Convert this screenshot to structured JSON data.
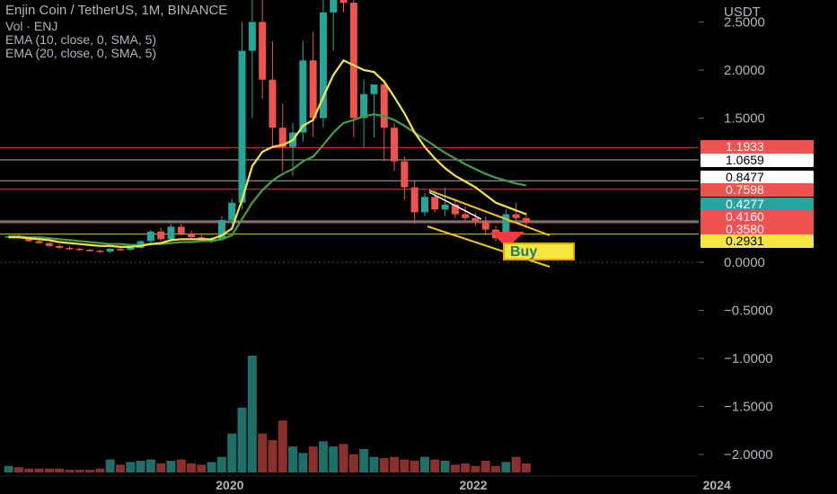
{
  "header": {
    "title": "Enjin Coin / TetherUS, 1M, BINANCE",
    "volume": "Vol · ENJ",
    "ema10": "EMA (10, close, 0, SMA, 5)",
    "ema20": "EMA (20, close, 0, SMA, 5)"
  },
  "colors": {
    "up": "#26a69a",
    "down": "#ef5350",
    "up_vol": "#1f6e68",
    "down_vol": "#8a2f2c",
    "ema10": "#f5e642",
    "ema20": "#43a047",
    "channel": "#f5c518",
    "buy_arrow": "#ef3b3b",
    "buy_box": "#f5e642"
  },
  "annotation": {
    "buy_label": "Buy"
  },
  "chart_data": {
    "type": "candlestick",
    "title": "Enjin Coin / TetherUS, 1M, BINANCE",
    "y_unit": "USDT",
    "ylim": [
      -2.3,
      2.7
    ],
    "y_ticks": [
      "2.5000",
      "2.0000",
      "1.5000",
      "0.0000",
      "−0.5000",
      "−1.0000",
      "−1.5000",
      "−2.0000"
    ],
    "x_ticks": [
      "2020",
      "2022",
      "2024"
    ],
    "x_tick_index": [
      22,
      46,
      70
    ],
    "price_badges": [
      {
        "label": "1.1933",
        "value": 1.1933,
        "style": "down"
      },
      {
        "label": "1.0659",
        "value": 1.0659,
        "style": "white"
      },
      {
        "label": "0.8477",
        "value": 0.8477,
        "style": "white"
      },
      {
        "label": "0.7598",
        "value": 0.7598,
        "style": "down"
      },
      {
        "label": "0.4277",
        "value": 0.4277,
        "style": "up"
      },
      {
        "label": "0.4160",
        "value": 0.416,
        "style": "down"
      },
      {
        "label": "0.3580",
        "value": 0.358,
        "style": "down"
      },
      {
        "label": "0.2931",
        "value": 0.2931,
        "style": "yellow"
      }
    ],
    "hlines": [
      {
        "value": 1.1933,
        "color": "#ef5350"
      },
      {
        "value": 1.0659,
        "color": "#cfcfcf"
      },
      {
        "value": 0.8477,
        "color": "#cfcfcf"
      },
      {
        "value": 0.7598,
        "color": "#ef5350"
      },
      {
        "value": 0.4277,
        "color": "#26a69a"
      },
      {
        "value": 0.416,
        "color": "#ef5350"
      },
      {
        "value": 0.2931,
        "color": "#f5e642"
      },
      {
        "value": 0.0,
        "color": "#555555",
        "dashed": true
      }
    ],
    "candles": [
      [
        0.26,
        0.28,
        0.25,
        0.27
      ],
      [
        0.27,
        0.29,
        0.25,
        0.25
      ],
      [
        0.25,
        0.26,
        0.21,
        0.22
      ],
      [
        0.22,
        0.24,
        0.19,
        0.2
      ],
      [
        0.2,
        0.21,
        0.16,
        0.17
      ],
      [
        0.17,
        0.19,
        0.14,
        0.15
      ],
      [
        0.15,
        0.17,
        0.13,
        0.14
      ],
      [
        0.14,
        0.15,
        0.12,
        0.13
      ],
      [
        0.13,
        0.14,
        0.11,
        0.12
      ],
      [
        0.12,
        0.13,
        0.1,
        0.11
      ],
      [
        0.11,
        0.15,
        0.1,
        0.14
      ],
      [
        0.14,
        0.16,
        0.12,
        0.13
      ],
      [
        0.13,
        0.16,
        0.12,
        0.15
      ],
      [
        0.15,
        0.23,
        0.14,
        0.22
      ],
      [
        0.22,
        0.34,
        0.2,
        0.32
      ],
      [
        0.32,
        0.36,
        0.22,
        0.24
      ],
      [
        0.24,
        0.4,
        0.23,
        0.37
      ],
      [
        0.37,
        0.4,
        0.28,
        0.3
      ],
      [
        0.3,
        0.33,
        0.24,
        0.26
      ],
      [
        0.26,
        0.29,
        0.21,
        0.22
      ],
      [
        0.22,
        0.26,
        0.2,
        0.24
      ],
      [
        0.24,
        0.48,
        0.22,
        0.44
      ],
      [
        0.44,
        0.66,
        0.4,
        0.62
      ],
      [
        0.62,
        2.5,
        0.55,
        2.2
      ],
      [
        2.2,
        3.0,
        1.5,
        2.5
      ],
      [
        2.5,
        3.0,
        1.7,
        1.9
      ],
      [
        1.9,
        2.3,
        1.2,
        1.4
      ],
      [
        1.4,
        1.65,
        0.95,
        1.2
      ],
      [
        1.2,
        1.45,
        0.9,
        1.35
      ],
      [
        1.35,
        2.3,
        1.25,
        2.1
      ],
      [
        2.1,
        2.4,
        1.3,
        1.5
      ],
      [
        1.5,
        2.8,
        1.4,
        2.6
      ],
      [
        2.6,
        3.0,
        2.2,
        2.9
      ],
      [
        2.9,
        3.1,
        2.6,
        2.7
      ],
      [
        2.7,
        2.8,
        1.3,
        1.5
      ],
      [
        1.5,
        1.9,
        1.2,
        1.75
      ],
      [
        1.75,
        1.85,
        1.3,
        1.85
      ],
      [
        1.85,
        1.9,
        1.05,
        1.4
      ],
      [
        1.4,
        1.45,
        0.95,
        1.05
      ],
      [
        1.05,
        1.1,
        0.65,
        0.78
      ],
      [
        0.78,
        0.85,
        0.4,
        0.52
      ],
      [
        0.52,
        0.72,
        0.48,
        0.68
      ],
      [
        0.68,
        0.75,
        0.52,
        0.55
      ],
      [
        0.55,
        0.78,
        0.48,
        0.6
      ],
      [
        0.6,
        0.66,
        0.46,
        0.5
      ],
      [
        0.5,
        0.58,
        0.42,
        0.46
      ],
      [
        0.46,
        0.52,
        0.38,
        0.43
      ],
      [
        0.43,
        0.48,
        0.28,
        0.34
      ],
      [
        0.34,
        0.38,
        0.22,
        0.25
      ],
      [
        0.25,
        0.55,
        0.24,
        0.5
      ],
      [
        0.5,
        0.62,
        0.42,
        0.46
      ],
      [
        0.46,
        0.52,
        0.36,
        0.42
      ]
    ],
    "ema10": [
      0.26,
      0.26,
      0.25,
      0.24,
      0.23,
      0.21,
      0.2,
      0.19,
      0.18,
      0.17,
      0.17,
      0.16,
      0.16,
      0.17,
      0.19,
      0.2,
      0.23,
      0.24,
      0.24,
      0.24,
      0.24,
      0.28,
      0.35,
      0.65,
      1.0,
      1.15,
      1.2,
      1.22,
      1.27,
      1.42,
      1.48,
      1.72,
      1.95,
      2.1,
      2.05,
      2.0,
      1.98,
      1.88,
      1.72,
      1.55,
      1.35,
      1.2,
      1.08,
      0.98,
      0.9,
      0.84,
      0.78,
      0.7,
      0.62,
      0.58,
      0.54,
      0.5
    ],
    "ema20": [
      0.27,
      0.27,
      0.26,
      0.26,
      0.25,
      0.24,
      0.23,
      0.22,
      0.21,
      0.2,
      0.19,
      0.19,
      0.18,
      0.18,
      0.19,
      0.19,
      0.2,
      0.21,
      0.21,
      0.22,
      0.22,
      0.24,
      0.28,
      0.45,
      0.62,
      0.75,
      0.85,
      0.92,
      0.97,
      1.05,
      1.1,
      1.22,
      1.35,
      1.45,
      1.48,
      1.52,
      1.54,
      1.52,
      1.48,
      1.42,
      1.35,
      1.28,
      1.21,
      1.14,
      1.08,
      1.02,
      0.97,
      0.92,
      0.88,
      0.85,
      0.82,
      0.8
    ],
    "volume": [
      5,
      4,
      3,
      3,
      3,
      3,
      2,
      2,
      2,
      3,
      10,
      6,
      8,
      9,
      10,
      7,
      9,
      10,
      7,
      6,
      8,
      12,
      30,
      50,
      90,
      30,
      25,
      40,
      20,
      15,
      20,
      24,
      20,
      22,
      14,
      18,
      12,
      11,
      12,
      10,
      9,
      12,
      10,
      9,
      6,
      7,
      5,
      9,
      5,
      8,
      12,
      7
    ]
  }
}
